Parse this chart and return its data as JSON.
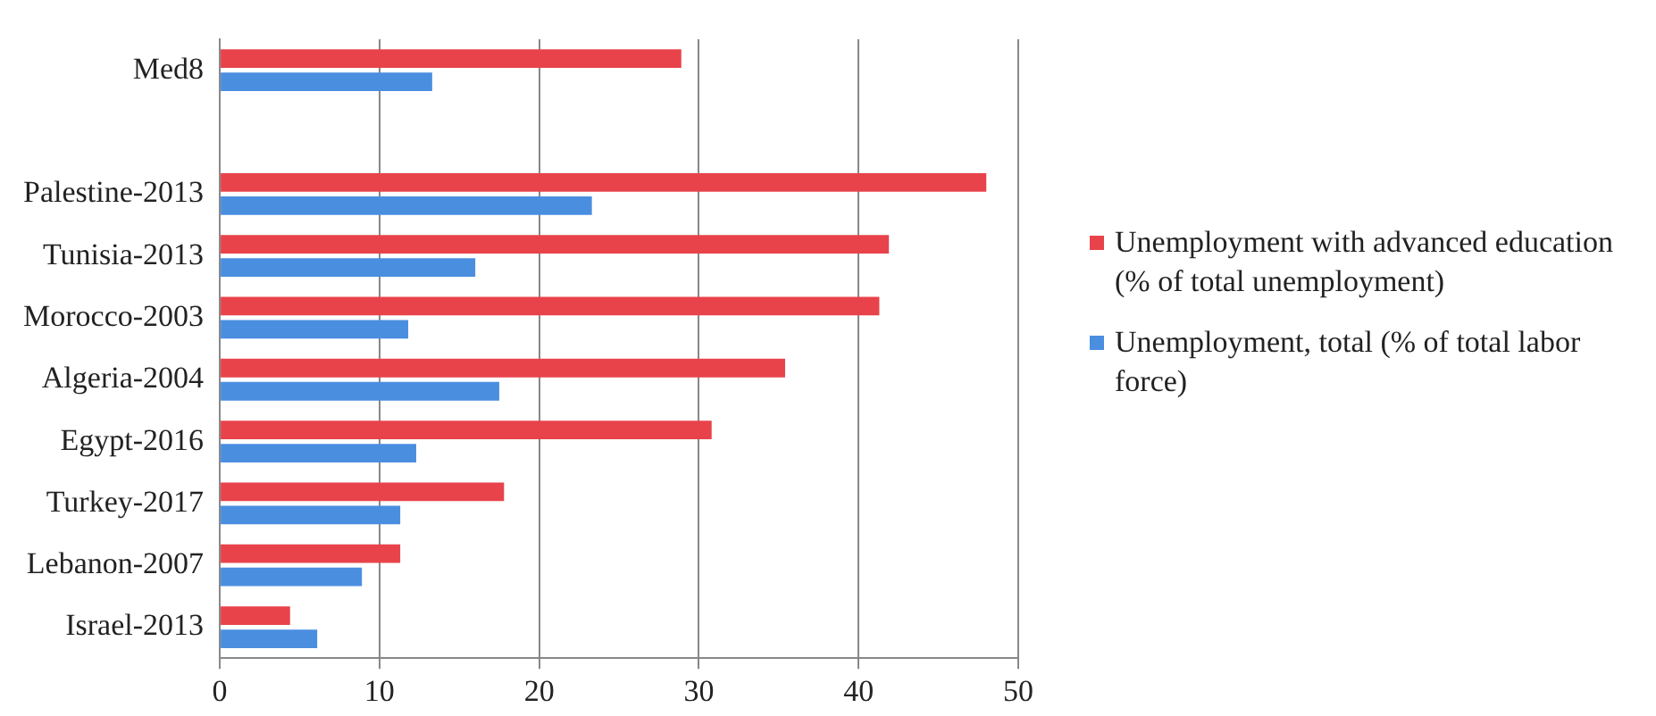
{
  "chart_data": {
    "type": "bar",
    "orientation": "horizontal",
    "categories": [
      "Med8",
      null,
      "Palestine-2013",
      "Tunisia-2013",
      "Morocco-2003",
      "Algeria-2004",
      "Egypt-2016",
      "Turkey-2017",
      "Lebanon-2007",
      "Israel-2013"
    ],
    "series": [
      {
        "name": "Unemployment with advanced education (% of total unemployment)",
        "color": "#e8434b",
        "values": [
          28.9,
          null,
          48.0,
          41.9,
          41.3,
          35.4,
          30.8,
          17.8,
          11.3,
          4.4
        ]
      },
      {
        "name": "Unemployment, total (% of total labor force)",
        "color": "#4a8ee0",
        "values": [
          13.3,
          null,
          23.3,
          16.0,
          11.8,
          17.5,
          12.3,
          11.3,
          8.9,
          6.1
        ]
      }
    ],
    "xlim": [
      0,
      50
    ],
    "xticks": [
      0,
      10,
      20,
      30,
      40,
      50
    ],
    "grid": "x",
    "legend": "right"
  }
}
